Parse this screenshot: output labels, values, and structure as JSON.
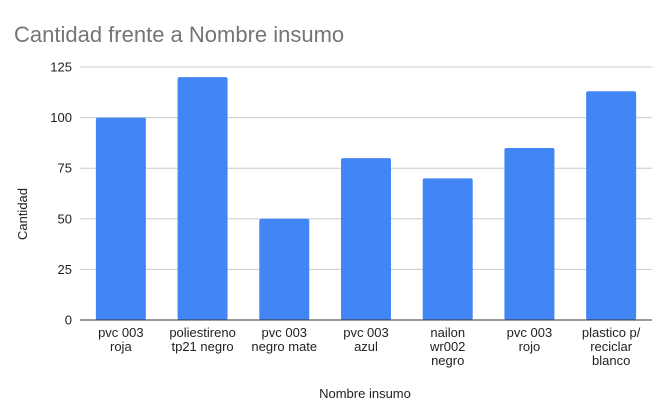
{
  "chart_data": {
    "type": "bar",
    "title": "Cantidad frente a Nombre insumo",
    "xlabel": "Nombre insumo",
    "ylabel": "Cantidad",
    "ylim": [
      0,
      125
    ],
    "yticks": [
      0,
      25,
      50,
      75,
      100,
      125
    ],
    "grid": true,
    "legend": "none",
    "bar_color": "#4285f4",
    "categories": [
      [
        "pvc 003",
        "roja"
      ],
      [
        "poliestireno",
        "tp21 negro"
      ],
      [
        "pvc 003",
        "negro mate"
      ],
      [
        "pvc 003",
        "azul"
      ],
      [
        "nailon",
        "wr002",
        "negro"
      ],
      [
        "pvc 003",
        "rojo"
      ],
      [
        "plastico p/",
        "reciclar",
        "blanco"
      ]
    ],
    "values": [
      100,
      120,
      50,
      80,
      70,
      85,
      113
    ]
  }
}
